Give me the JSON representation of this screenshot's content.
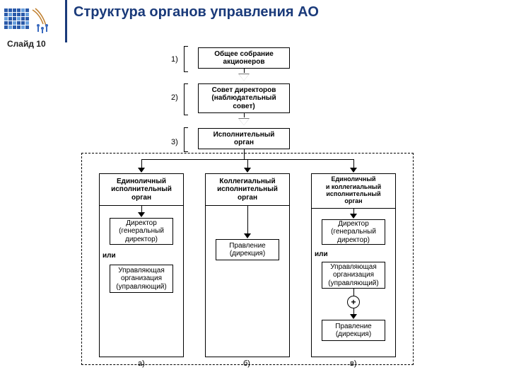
{
  "header": {
    "title": "Структура органов управления АО",
    "slide_label": "Слайд 10",
    "title_color": "#1a3a7a",
    "divider_color": "#1a3a7a"
  },
  "diagram": {
    "type": "flowchart",
    "numbers": {
      "n1": "1)",
      "n2": "2)",
      "n3": "3)"
    },
    "top": {
      "b1": "Общее собрание\nакционеров",
      "b2": "Совет директоров\n(наблюдательный\nсовет)",
      "b3": "Исполнительный\nорган"
    },
    "columns": {
      "a": {
        "head": "Единоличный\nисполнительный\nорган",
        "c1": "Директор\n(генеральный\nдиректор)",
        "c2": "Управляющая\nорганизация\n(управляющий)",
        "footer": "а)"
      },
      "b": {
        "head": "Коллегиальный\nисполнительный\nорган",
        "c1": "Правление\n(дирекция)",
        "footer": "б)"
      },
      "c": {
        "head": "Единоличный\nи коллегиальный\nисполнительный\nорган",
        "c1": "Директор\n(генеральный\nдиректор)",
        "c2": "Управляющая\nорганизация\n(управляющий)",
        "c3": "Правление\n(дирекция)",
        "footer": "в)"
      }
    },
    "ili_label": "или",
    "plus_label": "+",
    "column_border_color": "#000000",
    "box_border_color": "#000000",
    "dashed_border_color": "#000000",
    "arrow_fill": "#777777",
    "font_size_box": 10,
    "font_size_label": 11
  }
}
